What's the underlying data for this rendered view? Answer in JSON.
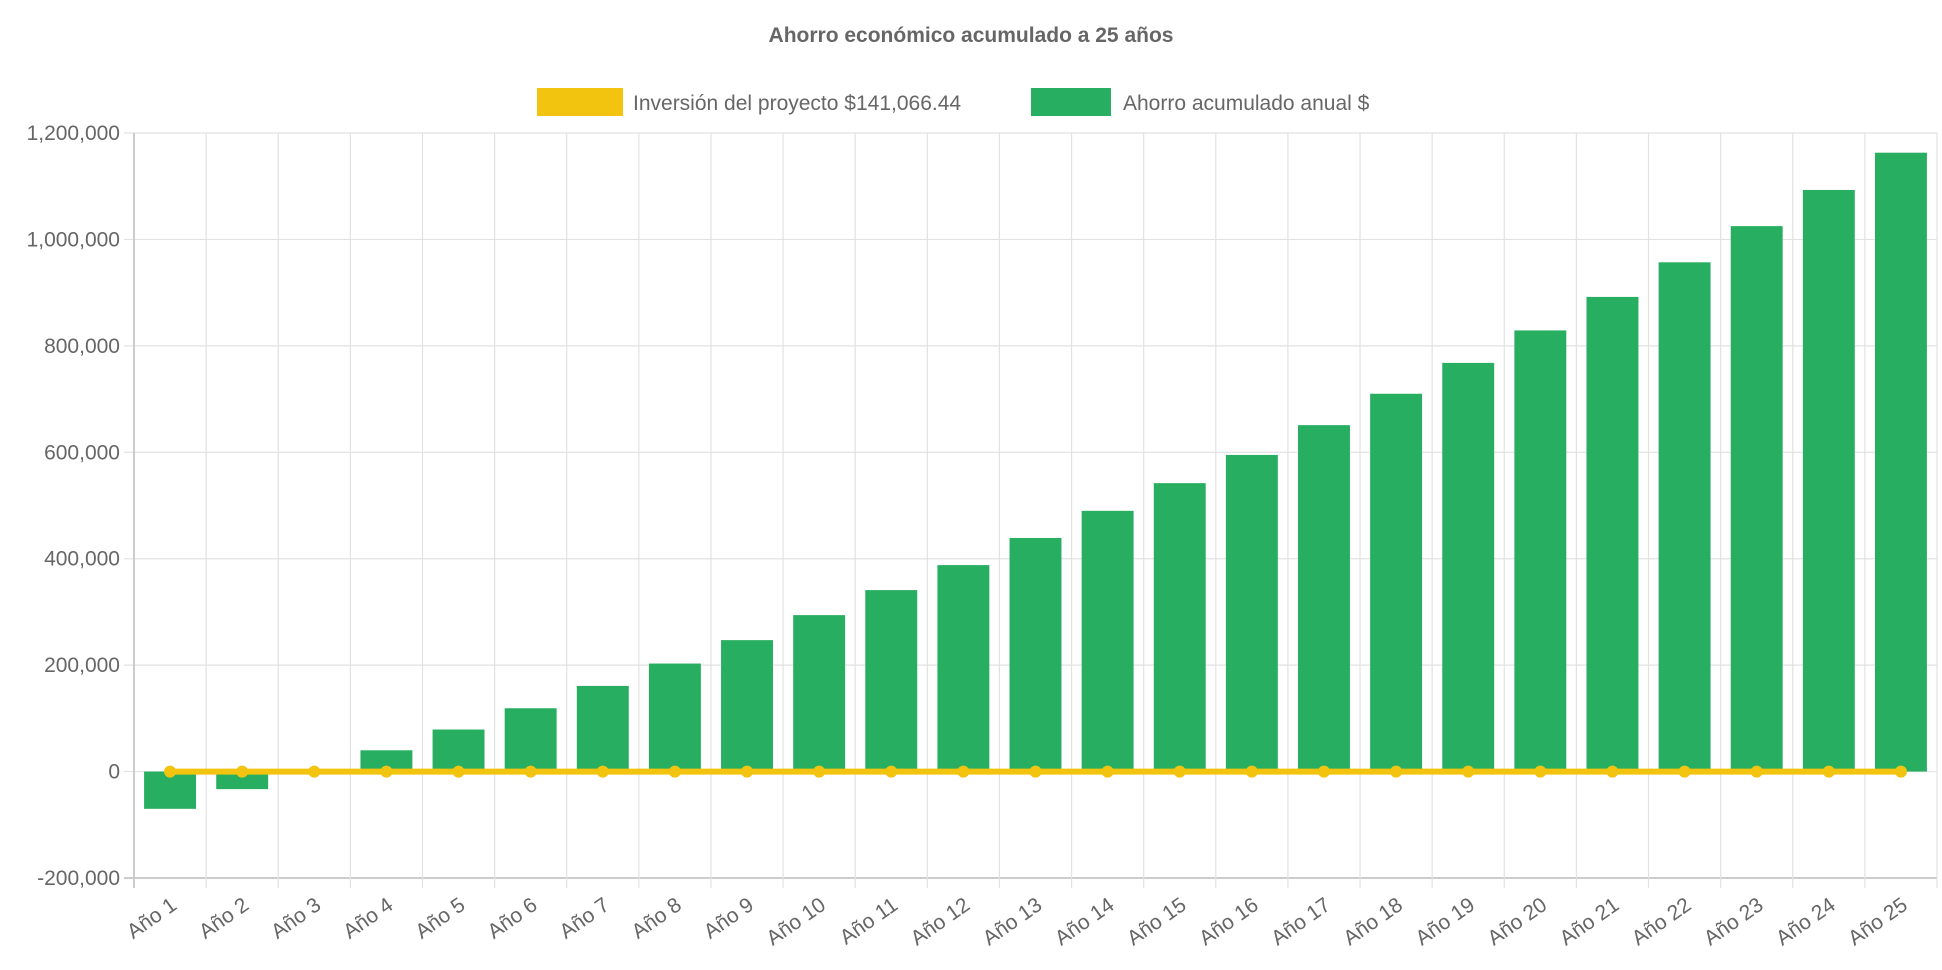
{
  "chart_data": {
    "type": "bar",
    "title": "Ahorro económico acumulado a 25 años",
    "xlabel": "",
    "ylabel": "",
    "ylim": [
      -200000,
      1200000
    ],
    "yticks": [
      "-200,000",
      "0",
      "200,000",
      "400,000",
      "600,000",
      "800,000",
      "1,000,000",
      "1,200,000"
    ],
    "ytick_values": [
      -200000,
      0,
      200000,
      400000,
      600000,
      800000,
      1000000,
      1200000
    ],
    "grid": true,
    "legend_position": "top",
    "categories": [
      "Año 1",
      "Año 2",
      "Año 3",
      "Año 4",
      "Año 5",
      "Año 6",
      "Año 7",
      "Año 8",
      "Año 9",
      "Año 10",
      "Año 11",
      "Año 12",
      "Año 13",
      "Año 14",
      "Año 15",
      "Año 16",
      "Año 17",
      "Año 18",
      "Año 19",
      "Año 20",
      "Año 21",
      "Año 22",
      "Año 23",
      "Año 24",
      "Año 25"
    ],
    "series": [
      {
        "name": "Inversión del proyecto $141,066.44",
        "type": "line",
        "color": "#f2c40f",
        "values": [
          0,
          0,
          0,
          0,
          0,
          0,
          0,
          0,
          0,
          0,
          0,
          0,
          0,
          0,
          0,
          0,
          0,
          0,
          0,
          0,
          0,
          0,
          0,
          0,
          0
        ]
      },
      {
        "name": "Ahorro acumulado anual $",
        "type": "bar",
        "color": "#27ae60",
        "values": [
          -70000,
          -33000,
          0,
          40000,
          79000,
          119000,
          161000,
          203000,
          247000,
          294000,
          341000,
          388000,
          439000,
          490000,
          542000,
          595000,
          651000,
          710000,
          768000,
          829000,
          892000,
          957000,
          1025000,
          1093000,
          1163000
        ]
      }
    ]
  }
}
